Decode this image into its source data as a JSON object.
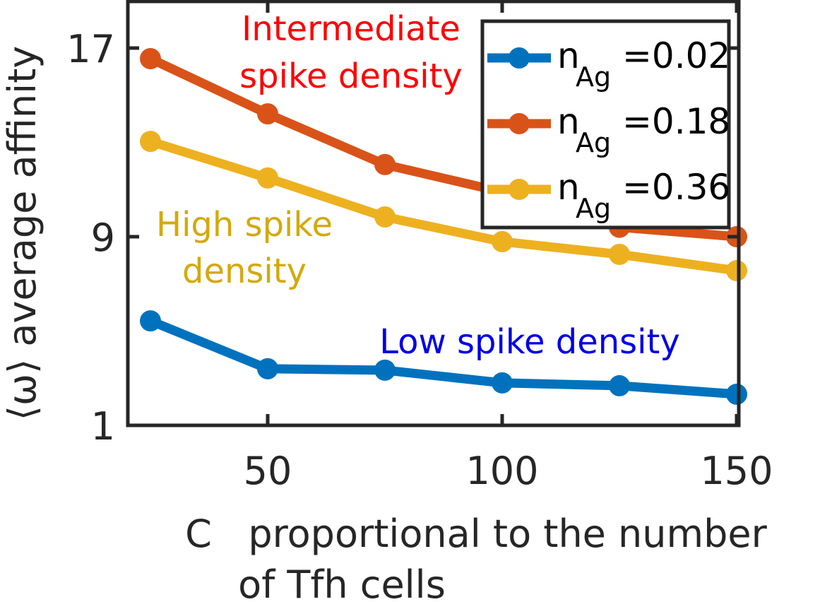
{
  "chart_data": {
    "type": "line",
    "title": "",
    "xlabel": "C   proportional to the number\nof Tfh cells",
    "xlabel_lines": [
      "C   proportional to the number",
      "of Tfh cells"
    ],
    "ylabel": "⟨ω⟩ average affinity",
    "xlim": [
      20,
      150
    ],
    "ylim": [
      1,
      18.9
    ],
    "xticks": [
      50,
      100,
      150
    ],
    "xtick_labels": [
      "50",
      "100",
      "150"
    ],
    "yticks": [
      1,
      9,
      17
    ],
    "ytick_labels": [
      "1",
      "9",
      "17"
    ],
    "grid": false,
    "legend_position": "top-right",
    "x": [
      25,
      50,
      75,
      100,
      125,
      150
    ],
    "series": [
      {
        "name": "n_Ag =0.02",
        "legend_main": "n",
        "legend_sub": "Ag",
        "legend_value": "=0.02",
        "color": "#0072BD",
        "values": [
          5.43,
          3.4,
          3.34,
          2.8,
          2.68,
          2.32
        ]
      },
      {
        "name": "n_Ag =0.18",
        "legend_main": "n",
        "legend_sub": "Ag",
        "legend_value": "=0.18",
        "color": "#D95319",
        "values": [
          16.55,
          14.21,
          12.06,
          10.9,
          9.4,
          9.0
        ]
      },
      {
        "name": "n_Ag =0.36",
        "legend_main": "n",
        "legend_sub": "Ag",
        "legend_value": "=0.36",
        "color": "#EDB120",
        "values": [
          13.04,
          11.49,
          9.84,
          8.79,
          8.25,
          7.56
        ]
      }
    ],
    "annotations": [
      {
        "lines": [
          "Intermediate",
          "spike density"
        ],
        "color": "#FF0000",
        "near_series": "n_Ag =0.18"
      },
      {
        "lines": [
          "High spike",
          "density"
        ],
        "color": "#D4A90A",
        "near_series": "n_Ag =0.36"
      },
      {
        "lines": [
          "Low spike density"
        ],
        "color": "#0000E6",
        "near_series": "n_Ag =0.02"
      }
    ]
  }
}
